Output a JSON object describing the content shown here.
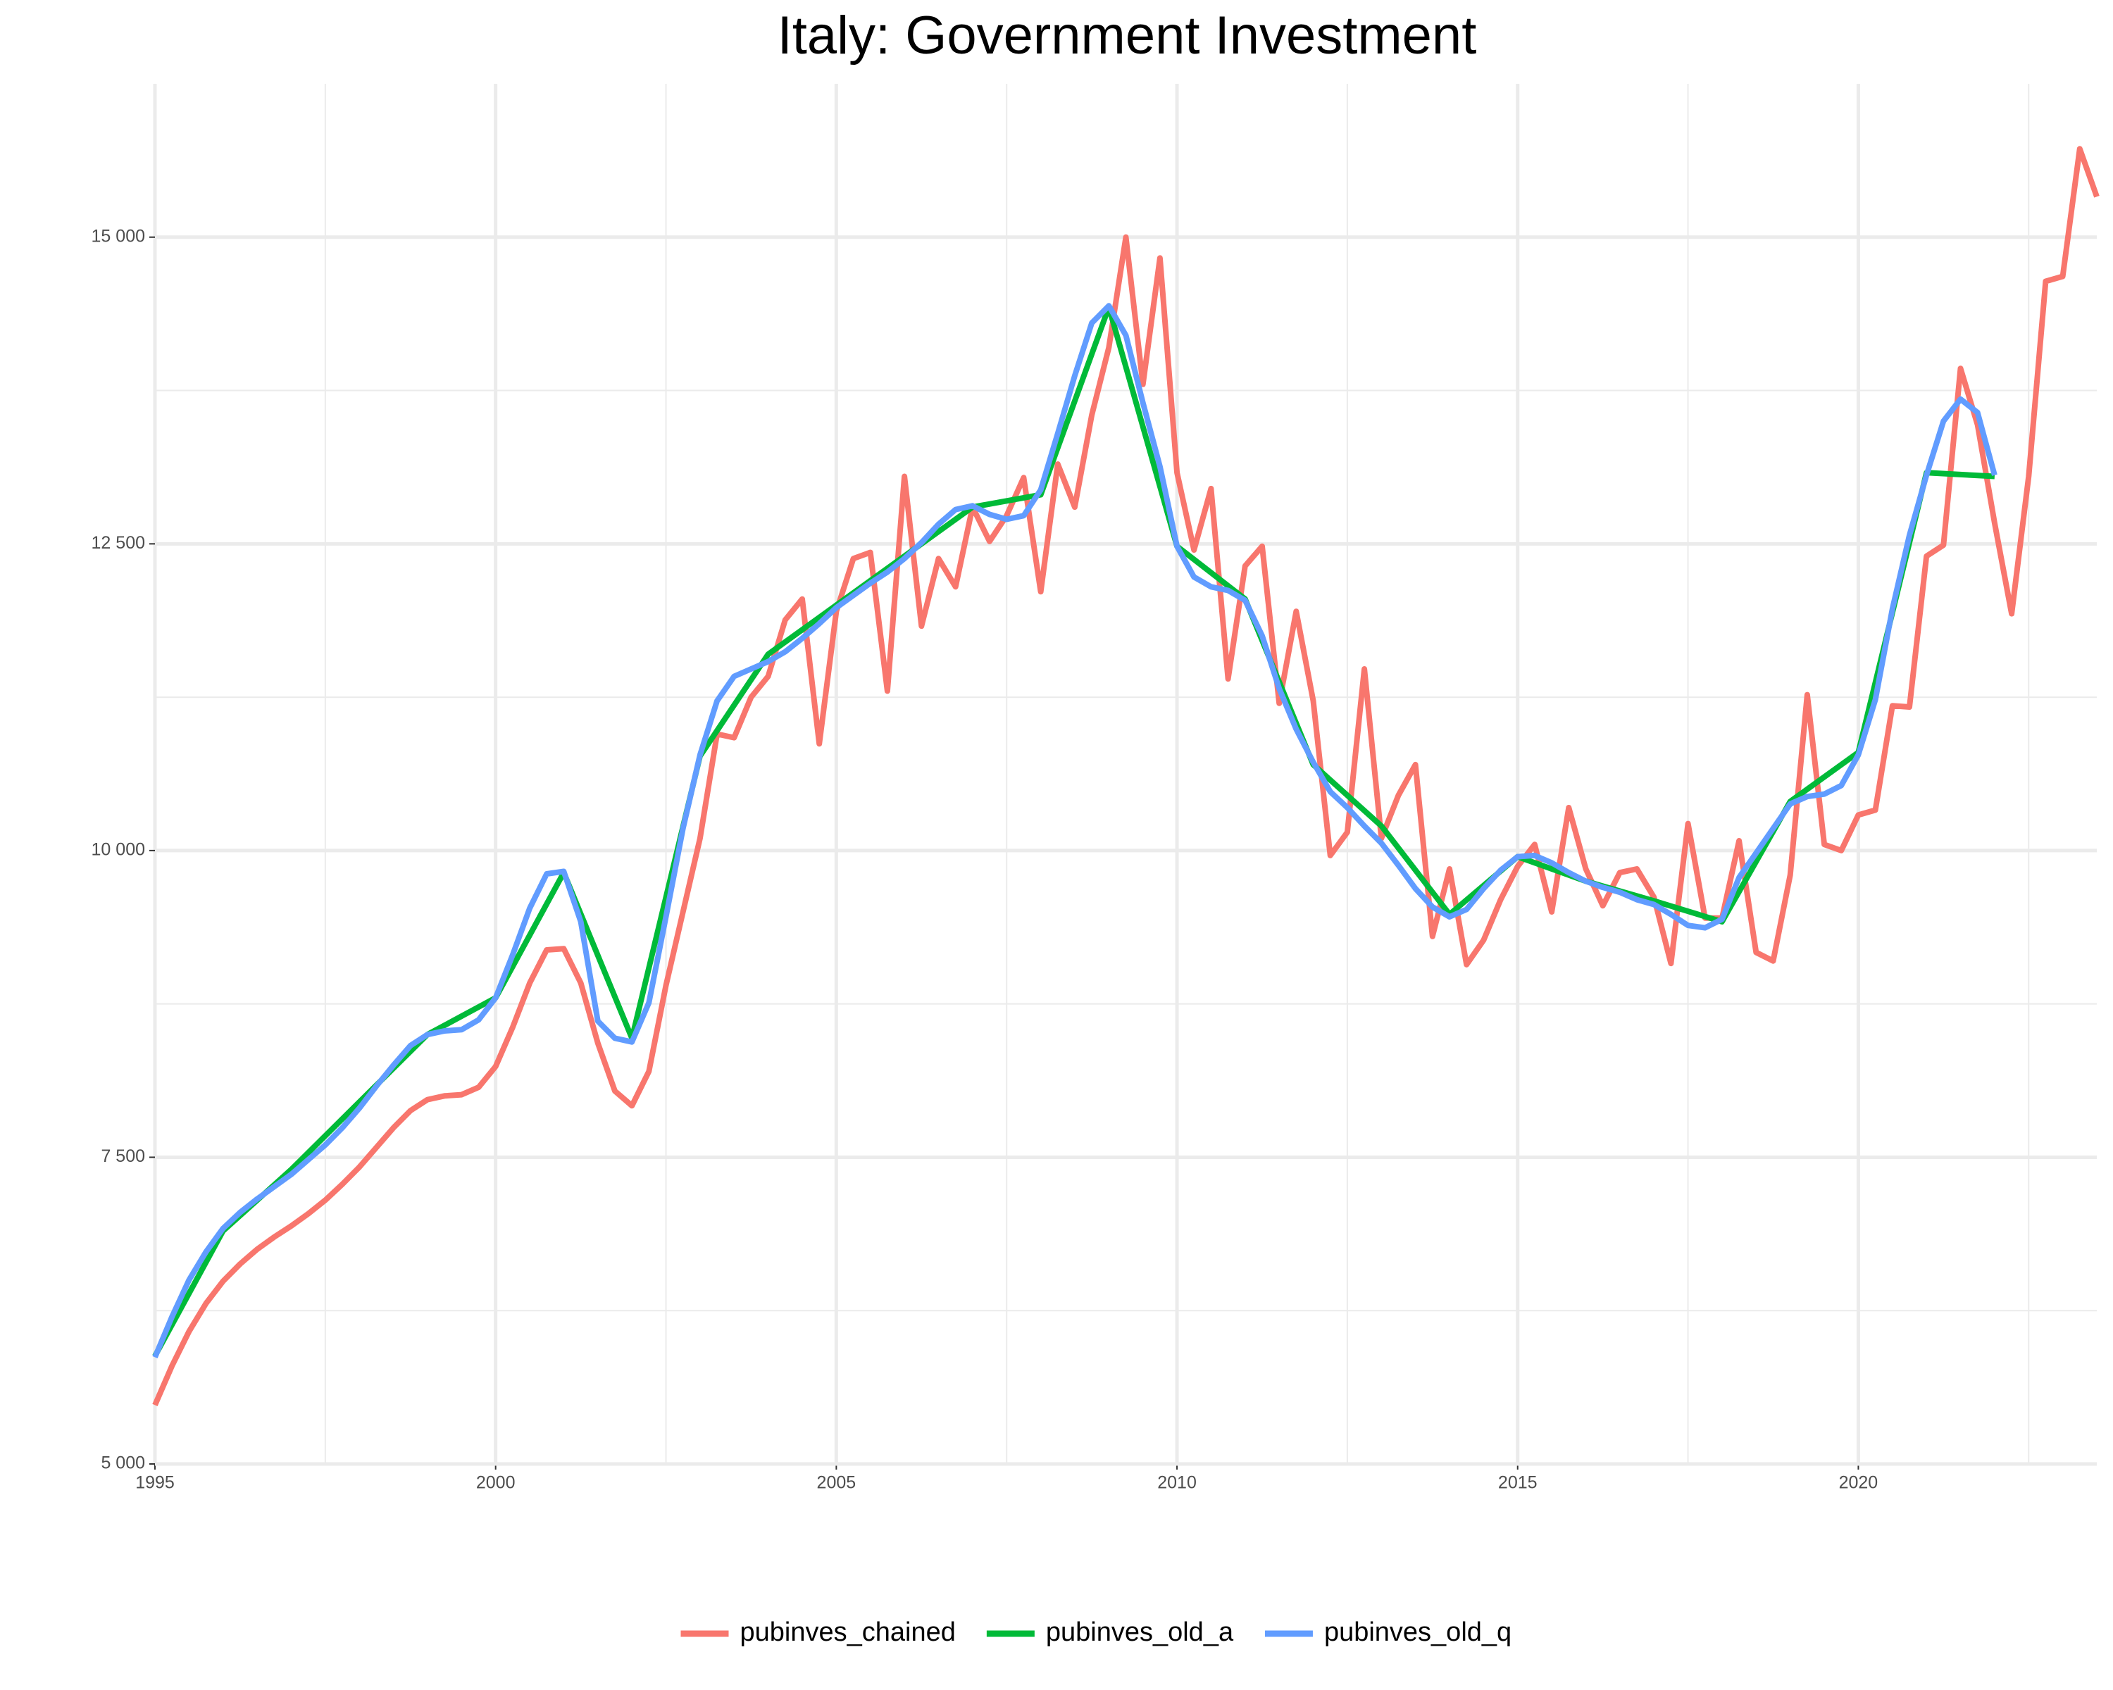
{
  "chart_data": {
    "type": "line",
    "title": "Italy: Government Investment",
    "xlim": [
      1995,
      2023.5
    ],
    "ylim": [
      5000,
      16250
    ],
    "xticks": [
      1995,
      2000,
      2005,
      2010,
      2015,
      2020
    ],
    "x_minor_grid": [
      1997.5,
      2002.5,
      2007.5,
      2012.5,
      2017.5,
      2022.5
    ],
    "yticks": [
      {
        "value": 5000,
        "label": "5 000"
      },
      {
        "value": 7500,
        "label": "7 500"
      },
      {
        "value": 10000,
        "label": "10 000"
      },
      {
        "value": 12500,
        "label": "12 500"
      },
      {
        "value": 15000,
        "label": "15 000"
      }
    ],
    "y_minor_grid": [
      6250,
      8750,
      11250,
      13750
    ],
    "grid": true,
    "legend": "bottom",
    "series": [
      {
        "name": "pubinves_chained",
        "color": "#f8766d",
        "x": [
          1995,
          1995.25,
          1995.5,
          1995.75,
          1996,
          1996.25,
          1996.5,
          1996.75,
          1997,
          1997.25,
          1997.5,
          1997.75,
          1998,
          1998.25,
          1998.5,
          1998.75,
          1999,
          1999.25,
          1999.5,
          1999.75,
          2000,
          2000.25,
          2000.5,
          2000.75,
          2001,
          2001.25,
          2001.5,
          2001.75,
          2002,
          2002.25,
          2002.5,
          2002.75,
          2003,
          2003.25,
          2003.5,
          2003.75,
          2004,
          2004.25,
          2004.5,
          2004.75,
          2005,
          2005.25,
          2005.5,
          2005.75,
          2006,
          2006.25,
          2006.5,
          2006.75,
          2007,
          2007.25,
          2007.5,
          2007.75,
          2008,
          2008.25,
          2008.5,
          2008.75,
          2009,
          2009.25,
          2009.5,
          2009.75,
          2010,
          2010.25,
          2010.5,
          2010.75,
          2011,
          2011.25,
          2011.5,
          2011.75,
          2012,
          2012.25,
          2012.5,
          2012.75,
          2013,
          2013.25,
          2013.5,
          2013.75,
          2014,
          2014.25,
          2014.5,
          2014.75,
          2015,
          2015.25,
          2015.5,
          2015.75,
          2016,
          2016.25,
          2016.5,
          2016.75,
          2017,
          2017.25,
          2017.5,
          2017.75,
          2018,
          2018.25,
          2018.5,
          2018.75,
          2019,
          2019.25,
          2019.5,
          2019.75,
          2020,
          2020.25,
          2020.5,
          2020.75,
          2021,
          2021.25,
          2021.5,
          2021.75,
          2022,
          2022.25,
          2022.5,
          2022.75,
          2023,
          2023.25,
          2023.5
        ],
        "values": [
          5480,
          5800,
          6080,
          6310,
          6490,
          6630,
          6750,
          6850,
          6940,
          7040,
          7150,
          7280,
          7420,
          7580,
          7740,
          7880,
          7970,
          8000,
          8010,
          8070,
          8240,
          8560,
          8920,
          9190,
          9200,
          8920,
          8430,
          8040,
          7920,
          8200,
          8900,
          9500,
          10100,
          10950,
          10920,
          11250,
          11420,
          11880,
          12050,
          10870,
          11950,
          12380,
          12430,
          11300,
          13050,
          11830,
          12380,
          12150,
          12800,
          12520,
          12730,
          13040,
          12110,
          13150,
          12800,
          13550,
          14100,
          15000,
          13800,
          14830,
          13080,
          12450,
          12950,
          11400,
          12320,
          12480,
          11200,
          11950,
          11220,
          9960,
          10150,
          11480,
          10100,
          10450,
          10700,
          9300,
          9850,
          9070,
          9270,
          9600,
          9870,
          10050,
          9500,
          10350,
          9850,
          9550,
          9820,
          9850,
          9620,
          9080,
          10220,
          9450,
          9450,
          10080,
          9170,
          9100,
          9800,
          11270,
          10050,
          10000,
          10290,
          10330,
          11180,
          11170,
          12400,
          12490,
          13930,
          13470,
          12670,
          11930,
          13050,
          14640,
          14680,
          15720,
          15330
        ]
      },
      {
        "name": "pubinves_old_a",
        "color": "#00ba38",
        "x": [
          1995,
          1996,
          1997,
          1998,
          1999,
          2000,
          2001,
          2002,
          2003,
          2004,
          2005,
          2006,
          2007,
          2008,
          2009,
          2010,
          2011,
          2012,
          2013,
          2014,
          2015,
          2016,
          2017,
          2018,
          2019,
          2020,
          2021,
          2022
        ],
        "values": [
          5880,
          6900,
          7400,
          7950,
          8500,
          8800,
          9820,
          8470,
          10770,
          11600,
          12000,
          12400,
          12800,
          12900,
          14430,
          12480,
          12050,
          10700,
          10200,
          9480,
          9950,
          9750,
          9590,
          9420,
          10400,
          10800,
          13080,
          13050
        ]
      },
      {
        "name": "pubinves_old_q",
        "color": "#619cff",
        "x": [
          1995,
          1995.25,
          1995.5,
          1995.75,
          1996,
          1996.25,
          1996.5,
          1996.75,
          1997,
          1997.25,
          1997.5,
          1997.75,
          1998,
          1998.25,
          1998.5,
          1998.75,
          1999,
          1999.25,
          1999.5,
          1999.75,
          2000,
          2000.25,
          2000.5,
          2000.75,
          2001,
          2001.25,
          2001.5,
          2001.75,
          2002,
          2002.25,
          2002.5,
          2002.75,
          2003,
          2003.25,
          2003.5,
          2003.75,
          2004,
          2004.25,
          2004.5,
          2004.75,
          2005,
          2005.25,
          2005.5,
          2005.75,
          2006,
          2006.25,
          2006.5,
          2006.75,
          2007,
          2007.25,
          2007.5,
          2007.75,
          2008,
          2008.25,
          2008.5,
          2008.75,
          2009,
          2009.25,
          2009.5,
          2009.75,
          2010,
          2010.25,
          2010.5,
          2010.75,
          2011,
          2011.25,
          2011.5,
          2011.75,
          2012,
          2012.25,
          2012.5,
          2012.75,
          2013,
          2013.25,
          2013.5,
          2013.75,
          2014,
          2014.25,
          2014.5,
          2014.75,
          2015,
          2015.25,
          2015.5,
          2015.75,
          2016,
          2016.25,
          2016.5,
          2016.75,
          2017,
          2017.25,
          2017.5,
          2017.75,
          2018,
          2018.25,
          2018.5,
          2018.75,
          2019,
          2019.25,
          2019.5,
          2019.75,
          2020,
          2020.25,
          2020.5,
          2020.75,
          2021,
          2021.25,
          2021.5,
          2021.75,
          2022
        ],
        "values": [
          5870,
          6200,
          6500,
          6730,
          6920,
          7050,
          7160,
          7260,
          7360,
          7480,
          7600,
          7740,
          7900,
          8080,
          8250,
          8410,
          8500,
          8530,
          8540,
          8620,
          8800,
          9150,
          9530,
          9810,
          9830,
          9420,
          8610,
          8470,
          8440,
          8760,
          9460,
          10180,
          10780,
          11220,
          11420,
          11480,
          11540,
          11620,
          11730,
          11850,
          11980,
          12080,
          12180,
          12270,
          12380,
          12510,
          12660,
          12780,
          12810,
          12740,
          12700,
          12730,
          12940,
          13400,
          13870,
          14300,
          14440,
          14200,
          13650,
          13130,
          12480,
          12230,
          12150,
          12120,
          12040,
          11750,
          11320,
          10990,
          10720,
          10480,
          10350,
          10200,
          10060,
          9880,
          9690,
          9540,
          9460,
          9520,
          9690,
          9840,
          9950,
          9960,
          9900,
          9820,
          9750,
          9700,
          9660,
          9600,
          9560,
          9480,
          9390,
          9370,
          9440,
          9780,
          9980,
          10180,
          10380,
          10440,
          10460,
          10530,
          10780,
          11230,
          11970,
          12570,
          13060,
          13500,
          13680,
          13570,
          13060
        ]
      }
    ]
  }
}
